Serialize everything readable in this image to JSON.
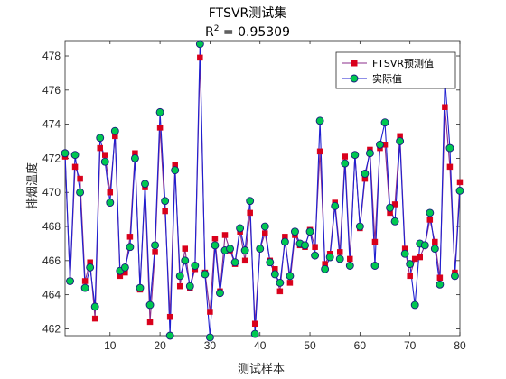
{
  "chart_data": {
    "type": "line",
    "title": "FTSVR测试集",
    "subtitle": {
      "prefix": "R",
      "superscript": "2",
      "suffix": " = 0.95309"
    },
    "xlabel": "测试样本",
    "ylabel": "排烟温度",
    "xlim": [
      1,
      80
    ],
    "ylim": [
      461.6,
      478.9
    ],
    "xticks": [
      10,
      20,
      30,
      40,
      50,
      60,
      70,
      80
    ],
    "yticks": [
      462,
      464,
      466,
      468,
      470,
      472,
      474,
      476,
      478
    ],
    "grid": false,
    "legend_position": "top-right",
    "x": [
      1,
      2,
      3,
      4,
      5,
      6,
      7,
      8,
      9,
      10,
      11,
      12,
      13,
      14,
      15,
      16,
      17,
      18,
      19,
      20,
      21,
      22,
      23,
      24,
      25,
      26,
      27,
      28,
      29,
      30,
      31,
      32,
      33,
      34,
      35,
      36,
      37,
      38,
      39,
      40,
      41,
      42,
      43,
      44,
      45,
      46,
      47,
      48,
      49,
      50,
      51,
      52,
      53,
      54,
      55,
      56,
      57,
      58,
      59,
      60,
      61,
      62,
      63,
      64,
      65,
      66,
      67,
      68,
      69,
      70,
      71,
      72,
      73,
      74,
      75,
      76,
      77,
      78,
      79,
      80
    ],
    "series": [
      {
        "name": "FTSVR预测值",
        "color": "#d9001b",
        "line_color": "#8b2d8b",
        "marker": "square",
        "values": [
          472.1,
          464.8,
          471.5,
          470.8,
          464.8,
          465.9,
          462.6,
          472.6,
          472.2,
          470.0,
          473.3,
          465.1,
          465.3,
          467.4,
          472.3,
          464.3,
          470.3,
          462.4,
          466.5,
          473.8,
          468.9,
          462.7,
          471.6,
          464.5,
          466.7,
          464.4,
          465.5,
          477.9,
          465.3,
          463.0,
          467.3,
          464.2,
          467.5,
          466.6,
          465.8,
          467.7,
          466.0,
          468.8,
          462.3,
          466.7,
          467.6,
          466.0,
          465.5,
          464.2,
          467.4,
          464.7,
          467.5,
          466.9,
          466.8,
          467.8,
          466.8,
          472.4,
          465.8,
          466.4,
          469.4,
          466.5,
          472.1,
          466.1,
          472.2,
          467.9,
          470.8,
          472.5,
          467.1,
          472.6,
          472.8,
          468.8,
          469.3,
          473.3,
          466.7,
          465.1,
          466.1,
          466.2,
          466.9,
          468.4,
          467.1,
          465.0,
          475.0,
          471.5,
          465.3,
          470.6
        ]
      },
      {
        "name": "实际值",
        "color": "#00c850",
        "line_color": "#1f1fd0",
        "marker": "circle",
        "values": [
          472.3,
          464.8,
          472.2,
          470.0,
          464.4,
          465.6,
          463.3,
          473.2,
          471.8,
          469.4,
          473.6,
          465.4,
          465.6,
          466.8,
          472.0,
          464.4,
          470.5,
          463.4,
          466.9,
          474.7,
          469.5,
          461.6,
          471.3,
          465.1,
          466.0,
          464.5,
          465.7,
          478.7,
          465.2,
          461.5,
          466.9,
          464.1,
          466.6,
          466.7,
          465.9,
          467.9,
          466.6,
          469.5,
          461.7,
          466.7,
          468.0,
          465.9,
          465.2,
          464.7,
          467.1,
          465.1,
          467.7,
          467.0,
          466.9,
          467.7,
          466.3,
          474.2,
          465.5,
          466.2,
          469.2,
          466.1,
          471.7,
          465.7,
          472.2,
          468.0,
          471.1,
          472.3,
          465.7,
          472.8,
          474.1,
          469.1,
          468.3,
          473.0,
          466.4,
          465.8,
          463.4,
          467.0,
          466.9,
          468.8,
          466.7,
          464.6,
          476.7,
          472.6,
          465.1,
          470.1
        ]
      }
    ]
  }
}
